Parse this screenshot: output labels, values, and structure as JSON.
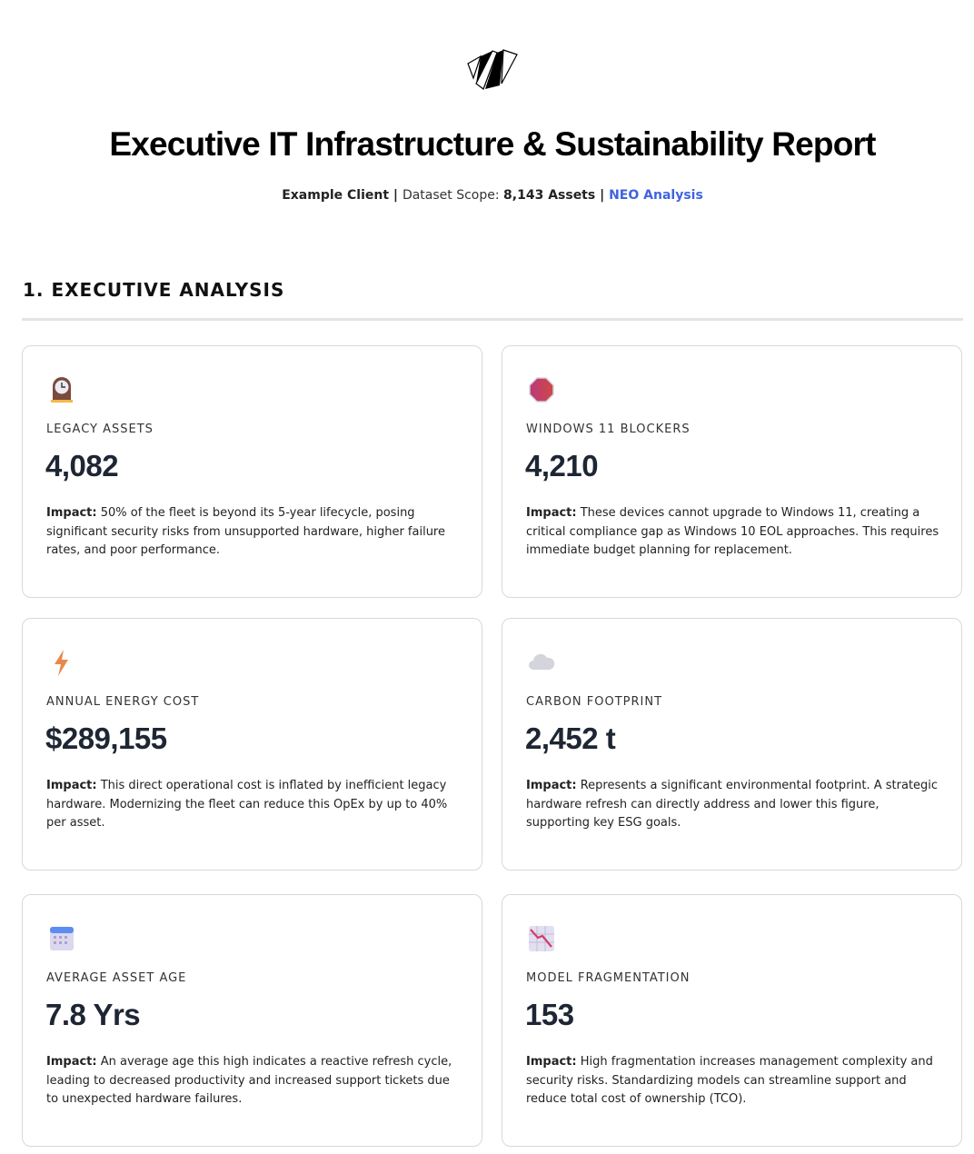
{
  "header": {
    "title": "Executive IT Infrastructure & Sustainability Report",
    "client": "Example Client",
    "sep1": " | ",
    "scope_label": "Dataset Scope: ",
    "scope_value": "8,143 Assets",
    "sep2": " | ",
    "analysis": "NEO Analysis"
  },
  "section": {
    "title": "1. EXECUTIVE ANALYSIS"
  },
  "cards": [
    {
      "icon": "mantelpiece-clock-icon",
      "label": "LEGACY ASSETS",
      "value": "4,082",
      "impact_label": "Impact:",
      "impact": " 50% of the fleet is beyond its 5-year lifecycle, posing significant security risks from unsupported hardware, higher failure rates, and poor performance."
    },
    {
      "icon": "stop-sign-icon",
      "label": "WINDOWS 11 BLOCKERS",
      "value": "4,210",
      "impact_label": "Impact:",
      "impact": " These devices cannot upgrade to Windows 11, creating a critical compliance gap as Windows 10 EOL approaches. This requires immediate budget planning for replacement."
    },
    {
      "icon": "lightning-icon",
      "label": "ANNUAL ENERGY COST",
      "value": "$289,155",
      "impact_label": "Impact:",
      "impact": " This direct operational cost is inflated by inefficient legacy hardware. Modernizing the fleet can reduce this OpEx by up to 40% per asset."
    },
    {
      "icon": "cloud-icon",
      "label": "CARBON FOOTPRINT",
      "value": "2,452 t",
      "impact_label": "Impact:",
      "impact": " Represents a significant environmental footprint. A strategic hardware refresh can directly address and lower this figure, supporting key ESG goals."
    },
    {
      "icon": "calendar-icon",
      "label": "AVERAGE ASSET AGE",
      "value": "7.8 Yrs",
      "impact_label": "Impact:",
      "impact": " An average age this high indicates a reactive refresh cycle, leading to decreased productivity and increased support tickets due to unexpected hardware failures."
    },
    {
      "icon": "chart-decreasing-icon",
      "label": "MODEL FRAGMENTATION",
      "value": "153",
      "impact_label": "Impact:",
      "impact": " High fragmentation increases management complexity and security risks. Standardizing models can streamline support and reduce total cost of ownership (TCO)."
    }
  ]
}
